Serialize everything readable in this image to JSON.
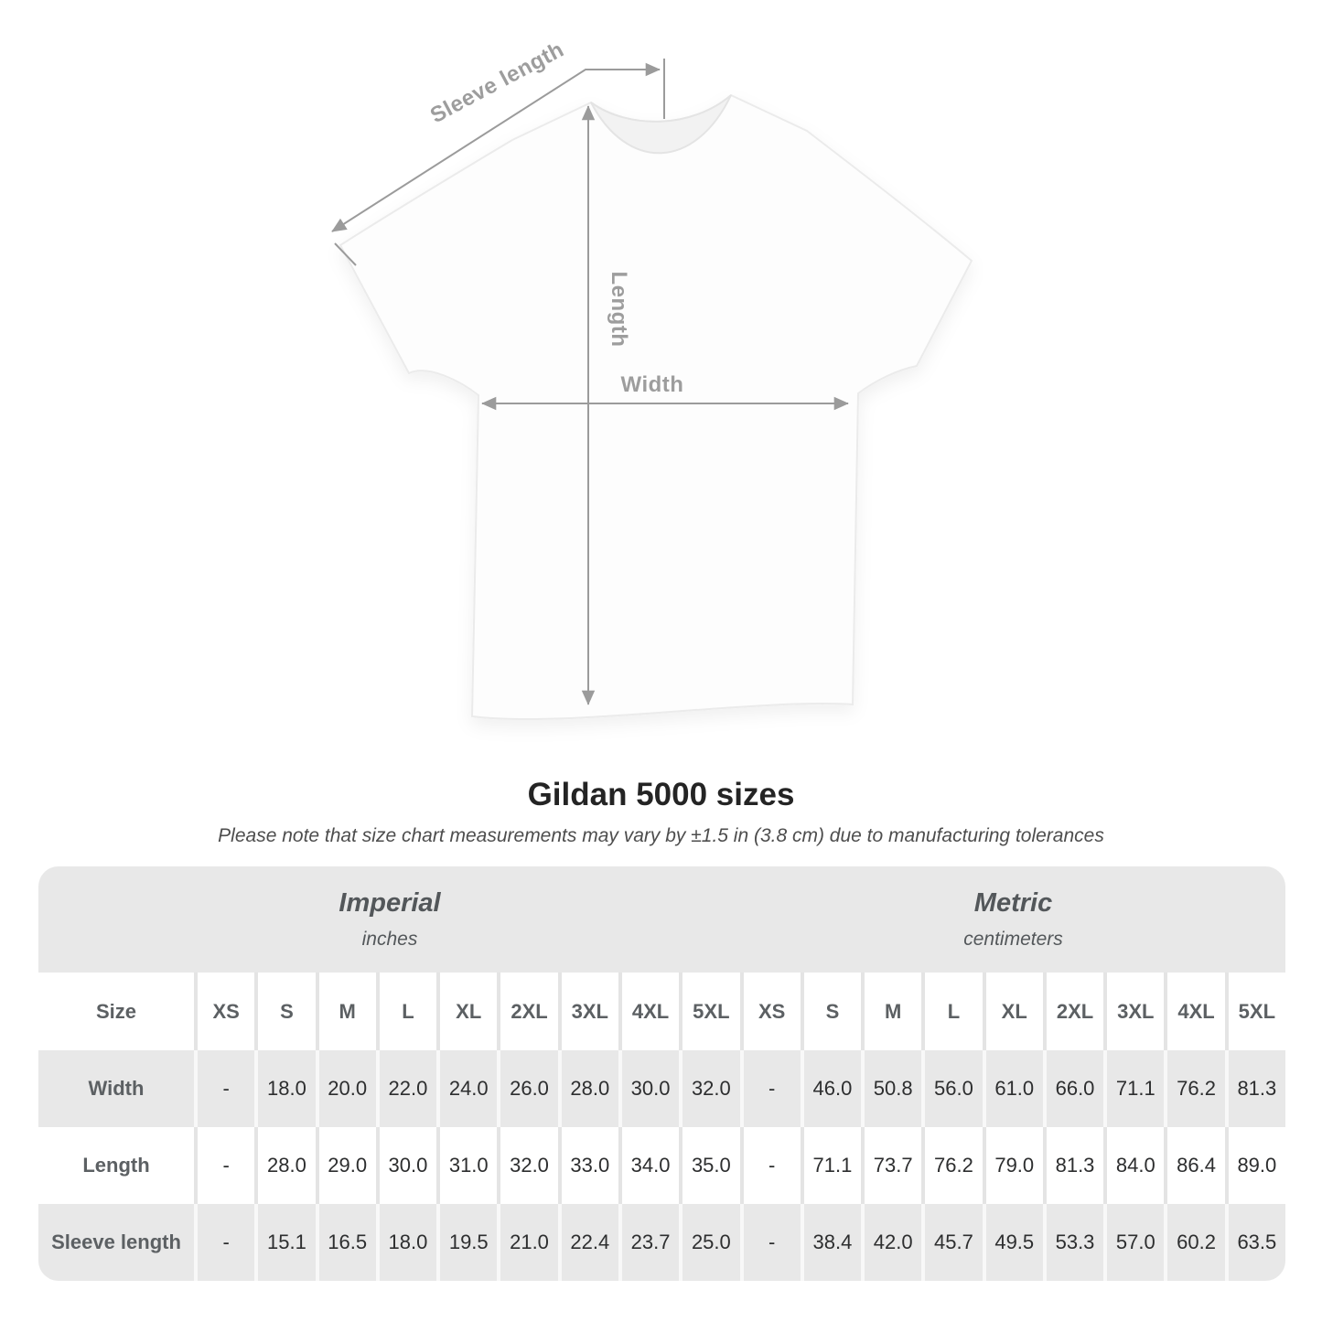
{
  "diagram": {
    "sleeve_label": "Sleeve length",
    "length_label": "Length",
    "width_label": "Width",
    "line_color": "#9b9b9b",
    "label_color": "#9d9d9d"
  },
  "header": {
    "title": "Gildan 5000 sizes",
    "subtitle": "Please note that size chart measurements may vary by ±1.5 in (3.8 cm) due to manufacturing tolerances"
  },
  "table_style": {
    "stripe_gray": "#e8e8e8",
    "stripe_white": "#ffffff",
    "header_text_color": "#5c6063",
    "value_text_color": "#2d2e2f"
  },
  "chart_data": {
    "type": "table",
    "title": "Gildan 5000 sizes",
    "note": "Please note that size chart measurements may vary by ±1.5 in (3.8 cm) due to manufacturing tolerances",
    "size_column_header": "Size",
    "empty_cell": "-",
    "groups": [
      {
        "label": "Imperial",
        "unit_label": "inches"
      },
      {
        "label": "Metric",
        "unit_label": "centimeters"
      }
    ],
    "sizes": [
      "XS",
      "S",
      "M",
      "L",
      "XL",
      "2XL",
      "3XL",
      "4XL",
      "5XL"
    ],
    "rows": [
      {
        "label": "Width",
        "imperial_in": [
          null,
          18.0,
          20.0,
          22.0,
          24.0,
          26.0,
          28.0,
          30.0,
          32.0
        ],
        "metric_cm": [
          null,
          46.0,
          50.8,
          56.0,
          61.0,
          66.0,
          71.1,
          76.2,
          81.3
        ]
      },
      {
        "label": "Length",
        "imperial_in": [
          null,
          28.0,
          29.0,
          30.0,
          31.0,
          32.0,
          33.0,
          34.0,
          35.0
        ],
        "metric_cm": [
          null,
          71.1,
          73.7,
          76.2,
          79.0,
          81.3,
          84.0,
          86.4,
          89.0
        ]
      },
      {
        "label": "Sleeve length",
        "imperial_in": [
          null,
          15.1,
          16.5,
          18.0,
          19.5,
          21.0,
          22.4,
          23.7,
          25.0
        ],
        "metric_cm": [
          null,
          38.4,
          42.0,
          45.7,
          49.5,
          53.3,
          57.0,
          60.2,
          63.5
        ]
      }
    ]
  }
}
